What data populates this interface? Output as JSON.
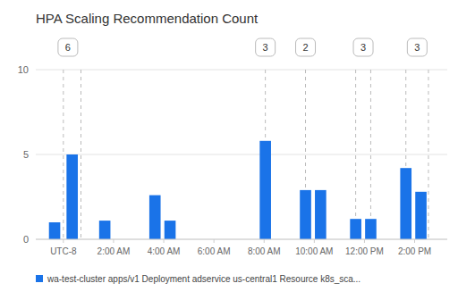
{
  "chart_data": {
    "type": "bar",
    "title": "HPA Scaling Recommendation Count",
    "x": [
      -0.35,
      0.35,
      1.65,
      3.65,
      4.25,
      8.05,
      9.65,
      10.25,
      11.65,
      12.25,
      13.65,
      14.25
    ],
    "series": [
      {
        "name": "wa-test-cluster apps/v1 Deployment adservice us-central1 Resource k8s_sca...",
        "color": "#1a73e8",
        "values": [
          1.0,
          5.0,
          1.1,
          2.6,
          1.1,
          5.8,
          2.9,
          2.9,
          1.2,
          1.2,
          4.2,
          2.8
        ]
      }
    ],
    "xlim": [
      -1.1,
      15.3
    ],
    "xticks": [
      {
        "value": 0,
        "label": "UTC-8"
      },
      {
        "value": 2,
        "label": "2:00 AM"
      },
      {
        "value": 4,
        "label": "4:00 AM"
      },
      {
        "value": 6,
        "label": "6:00 AM"
      },
      {
        "value": 8,
        "label": "8:00 AM"
      },
      {
        "value": 10,
        "label": "10:00 AM"
      },
      {
        "value": 12,
        "label": "12:00 PM"
      },
      {
        "value": 14,
        "label": "2:00 PM"
      }
    ],
    "ylim": [
      0,
      10
    ],
    "yticks": [
      0,
      5,
      10
    ],
    "vlines": [
      0.0,
      0.7,
      8.05,
      9.65,
      11.65,
      12.25,
      13.65,
      14.55
    ],
    "annotations": [
      {
        "x": 0.18,
        "text": "6"
      },
      {
        "x": 8.05,
        "text": "3"
      },
      {
        "x": 9.65,
        "text": "2"
      },
      {
        "x": 11.95,
        "text": "3"
      },
      {
        "x": 14.1,
        "text": "3"
      }
    ],
    "grid": true,
    "legend": "lower left"
  }
}
